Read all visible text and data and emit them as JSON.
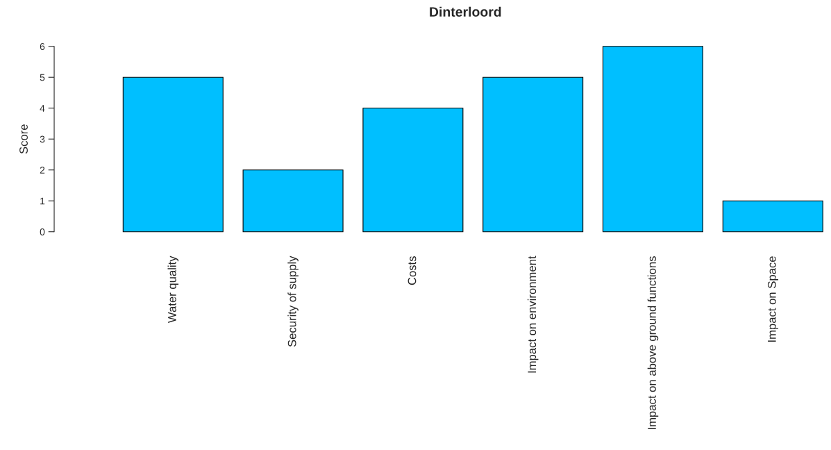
{
  "chart_data": {
    "type": "bar",
    "title": "Dinterloord",
    "ylabel": "Score",
    "categories": [
      "Water quality",
      "Security of supply",
      "Costs",
      "Impact on environment",
      "Impact on above ground functions",
      "Impact on Space"
    ],
    "values": [
      5,
      2,
      4,
      5,
      6,
      1
    ],
    "color": "#00bfff",
    "ylim": [
      0,
      6
    ],
    "yticks": [
      0,
      1,
      2,
      3,
      4,
      5,
      6
    ],
    "grid": false,
    "legend": false
  }
}
